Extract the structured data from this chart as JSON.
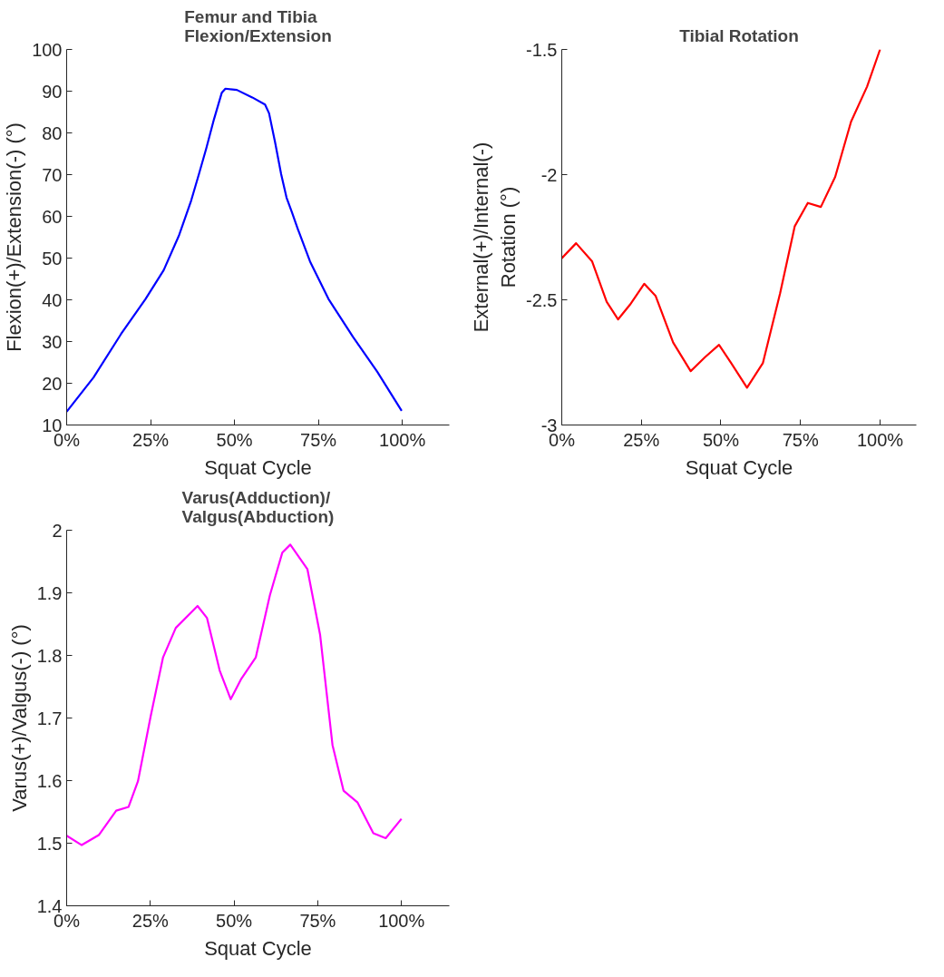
{
  "chart_data": [
    {
      "type": "line",
      "title": "Femur and Tibia\nFlexion/Extension",
      "xlabel": "Squat Cycle",
      "ylabel": "Flexion(+)/Extension(-) (°)",
      "series": [
        {
          "color": "#0000ff",
          "x": [
            0,
            8,
            16.2,
            23.5,
            28.9,
            33.5,
            37.1,
            39.4,
            41.6,
            43.9,
            46.2,
            47.3,
            50.7,
            55.3,
            59.1,
            60.3,
            62.1,
            63.9,
            65.5,
            67.1,
            68.9,
            72.5,
            78,
            85.3,
            92.5,
            99.8
          ],
          "values": [
            13.2,
            21.4,
            31.8,
            40.2,
            47.1,
            55.5,
            63.8,
            70.1,
            76.3,
            83.3,
            89.6,
            90.6,
            90.3,
            88.5,
            86.8,
            84.7,
            77.7,
            70.1,
            64.5,
            61.0,
            56.9,
            49.2,
            40.2,
            31.1,
            22.8,
            13.4
          ]
        }
      ],
      "xlim": [
        0,
        114
      ],
      "xticks": [
        {
          "value": 0,
          "label": "0%"
        },
        {
          "value": 25,
          "label": "25%"
        },
        {
          "value": 50,
          "label": "50%"
        },
        {
          "value": 75,
          "label": "75%"
        },
        {
          "value": 100,
          "label": "100%"
        }
      ],
      "ylim": [
        10,
        100
      ],
      "yticks": [
        10,
        20,
        30,
        40,
        50,
        60,
        70,
        80,
        90,
        100
      ],
      "grid": false
    },
    {
      "type": "line",
      "title": "Tibial Rotation",
      "xlabel": "Squat Cycle",
      "ylabel": "External(+)/Internal(-)\nRotation (°)",
      "series": [
        {
          "color": "#ff0000",
          "x": [
            0,
            4.5,
            9.5,
            14.1,
            17.7,
            21.4,
            25.9,
            29.5,
            35,
            40.5,
            45,
            49.4,
            53.2,
            58.2,
            63.2,
            68.6,
            73.2,
            77.3,
            81.4,
            85.9,
            90.9,
            95.9,
            100
          ],
          "values": [
            -2.334,
            -2.274,
            -2.346,
            -2.508,
            -2.578,
            -2.52,
            -2.436,
            -2.485,
            -2.671,
            -2.785,
            -2.729,
            -2.68,
            -2.752,
            -2.851,
            -2.752,
            -2.474,
            -2.206,
            -2.113,
            -2.129,
            -2.009,
            -1.788,
            -1.649,
            -1.5
          ]
        }
      ],
      "xlim": [
        0,
        111.4
      ],
      "xticks": [
        {
          "value": 0,
          "label": "0%"
        },
        {
          "value": 25,
          "label": "25%"
        },
        {
          "value": 50,
          "label": "50%"
        },
        {
          "value": 75,
          "label": "75%"
        },
        {
          "value": 100,
          "label": "100%"
        }
      ],
      "ylim": [
        -3,
        -1.5
      ],
      "yticks": [
        -3,
        -2.5,
        -2,
        -1.5
      ],
      "grid": false
    },
    {
      "type": "line",
      "title": "Varus(Adduction)/\nValgus(Abduction)",
      "xlabel": "Squat Cycle",
      "ylabel": "Varus(+)/Valgus(-) (°)",
      "series": [
        {
          "color": "#ff00ff",
          "x": [
            0,
            4.5,
            9.6,
            14.8,
            18.5,
            21.3,
            25.1,
            28.8,
            32.6,
            39.1,
            41.9,
            45.7,
            49,
            52.2,
            56.5,
            60.7,
            64.4,
            66.8,
            71.9,
            75.7,
            79.4,
            82.7,
            86.9,
            91.6,
            95.3,
            100
          ],
          "values": [
            1.512,
            1.497,
            1.513,
            1.552,
            1.558,
            1.599,
            1.703,
            1.797,
            1.844,
            1.879,
            1.86,
            1.776,
            1.73,
            1.763,
            1.797,
            1.896,
            1.964,
            1.977,
            1.938,
            1.833,
            1.657,
            1.584,
            1.565,
            1.516,
            1.508,
            1.539
          ]
        }
      ],
      "xlim": [
        0,
        114.3
      ],
      "xticks": [
        {
          "value": 0,
          "label": "0%"
        },
        {
          "value": 25,
          "label": "25%"
        },
        {
          "value": 50,
          "label": "50%"
        },
        {
          "value": 75,
          "label": "75%"
        },
        {
          "value": 100,
          "label": "100%"
        }
      ],
      "ylim": [
        1.4,
        2
      ],
      "yticks": [
        1.4,
        1.5,
        1.6,
        1.7,
        1.8,
        1.9,
        2
      ],
      "grid": false
    }
  ]
}
